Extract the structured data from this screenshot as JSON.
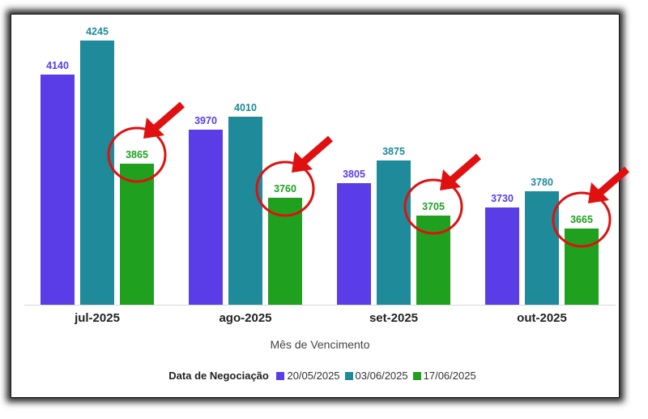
{
  "chart_data": {
    "type": "bar",
    "categories": [
      "jul-2025",
      "ago-2025",
      "set-2025",
      "out-2025"
    ],
    "series": [
      {
        "name": "20/05/2025",
        "color": "#5a3de6",
        "values": [
          4140,
          3970,
          3805,
          3730
        ]
      },
      {
        "name": "03/06/2025",
        "color": "#1e8a9a",
        "values": [
          4245,
          4010,
          3875,
          3780
        ]
      },
      {
        "name": "17/06/2025",
        "color": "#1fa01f",
        "values": [
          3865,
          3760,
          3705,
          3665
        ]
      }
    ],
    "title": "",
    "xlabel": "Mês de Vencimento",
    "ylabel": "",
    "legend_title": "Data de Negociação",
    "legend_position": "bottom",
    "highlight": {
      "series": "17/06/2025",
      "style": "red circle with arrow",
      "color": "#e01010"
    }
  }
}
